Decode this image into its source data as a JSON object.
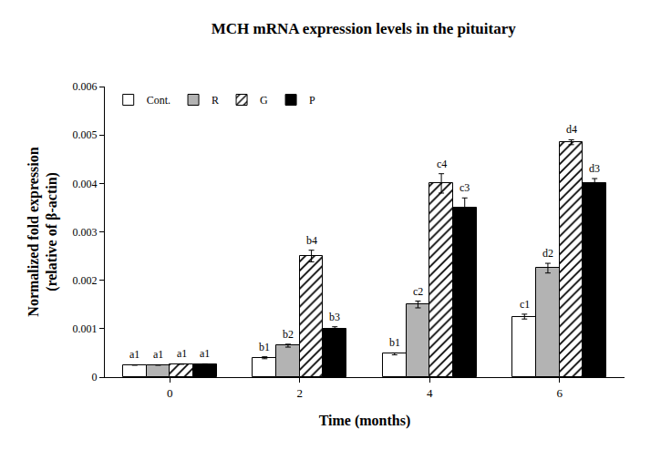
{
  "chart_data": {
    "type": "bar",
    "title": "MCH mRNA expression levels in the pituitary",
    "x_label": "Time (months)",
    "y_label": "Normalized fold expression\n(relative of β-actin)",
    "categories": [
      "0",
      "2",
      "4",
      "6"
    ],
    "series": [
      {
        "name": "Cont.",
        "color": "#ffffff",
        "values": [
          0.00025,
          0.0004,
          0.00048,
          0.00125
        ],
        "errors": [
          5e-06,
          2e-05,
          2e-05,
          5e-05
        ],
        "significance": [
          "a1",
          "b1",
          "b1",
          "c1"
        ]
      },
      {
        "name": "R",
        "color": "#b3b3b3",
        "values": [
          0.00025,
          0.00065,
          0.0015,
          0.00225
        ],
        "errors": [
          5e-06,
          3e-05,
          7e-05,
          0.0001
        ],
        "significance": [
          "a1",
          "b2",
          "c2",
          "d2"
        ]
      },
      {
        "name": "G",
        "color": "#ffffff",
        "marker": "hatch",
        "values": [
          0.00027,
          0.0025,
          0.004,
          0.00485
        ],
        "errors": [
          5e-06,
          0.00012,
          0.0002,
          5e-05
        ],
        "significance": [
          "a1",
          "b4",
          "c4",
          "d4"
        ]
      },
      {
        "name": "P",
        "color": "#000000",
        "values": [
          0.00027,
          0.001,
          0.0035,
          0.004
        ],
        "errors": [
          5e-06,
          4e-05,
          0.0002,
          0.0001
        ],
        "significance": [
          "a1",
          "b3",
          "c3",
          "d3"
        ]
      }
    ],
    "ylim": [
      0,
      0.006
    ],
    "yticks": [
      0,
      0.001,
      0.002,
      0.003,
      0.004,
      0.005,
      0.006
    ],
    "grid": false,
    "legend": "upper left"
  }
}
